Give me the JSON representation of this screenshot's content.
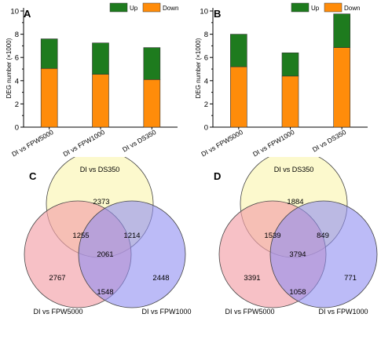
{
  "colors": {
    "up": "#1e7b1e",
    "down": "#ff8c0a",
    "venn_top": "#fbf7c0",
    "venn_left": "#f3a0a8",
    "venn_right": "#8f8ef2"
  },
  "chart_data": [
    {
      "type": "bar",
      "panel": "A",
      "stacked": true,
      "ylabel": "DEG number (×1000)",
      "ylim": [
        0,
        10
      ],
      "yticks": [
        "0",
        "2",
        "4",
        "6",
        "8",
        "10"
      ],
      "categories": [
        "DI vs FPW5000",
        "DI vs FPW1000",
        "DI vs DS350"
      ],
      "legend": [
        "Up",
        "Down"
      ],
      "legend_position": "top-right",
      "series": [
        {
          "name": "Down",
          "values": [
            5.05,
            4.55,
            4.1
          ]
        },
        {
          "name": "Up",
          "values": [
            2.55,
            2.7,
            2.75
          ]
        }
      ]
    },
    {
      "type": "bar",
      "panel": "B",
      "stacked": true,
      "ylabel": "DEG number (×1000)",
      "ylim": [
        0,
        10
      ],
      "yticks": [
        "0",
        "2",
        "4",
        "6",
        "8",
        "10"
      ],
      "categories": [
        "DI vs FPW5000",
        "DI vs FPW1000",
        "DI vs DS350"
      ],
      "legend": [
        "Up",
        "Down"
      ],
      "legend_position": "top-right",
      "series": [
        {
          "name": "Down",
          "values": [
            5.2,
            4.4,
            6.85
          ]
        },
        {
          "name": "Up",
          "values": [
            2.8,
            2.0,
            2.9
          ]
        }
      ]
    },
    {
      "type": "venn",
      "panel": "C",
      "sets": [
        "DI vs DS350",
        "DI vs FPW5000",
        "DI vs FPW1000"
      ],
      "regions": {
        "top_only": 2373,
        "left_only": 2767,
        "right_only": 2448,
        "top_left": 1255,
        "top_right": 1214,
        "left_right": 1548,
        "all": 2061
      }
    },
    {
      "type": "venn",
      "panel": "D",
      "sets": [
        "DI vs DS350",
        "DI vs FPW5000",
        "DI vs FPW1000"
      ],
      "regions": {
        "top_only": 1884,
        "left_only": 3391,
        "right_only": 771,
        "top_left": 1539,
        "top_right": 849,
        "left_right": 1058,
        "all": 3794
      }
    }
  ]
}
